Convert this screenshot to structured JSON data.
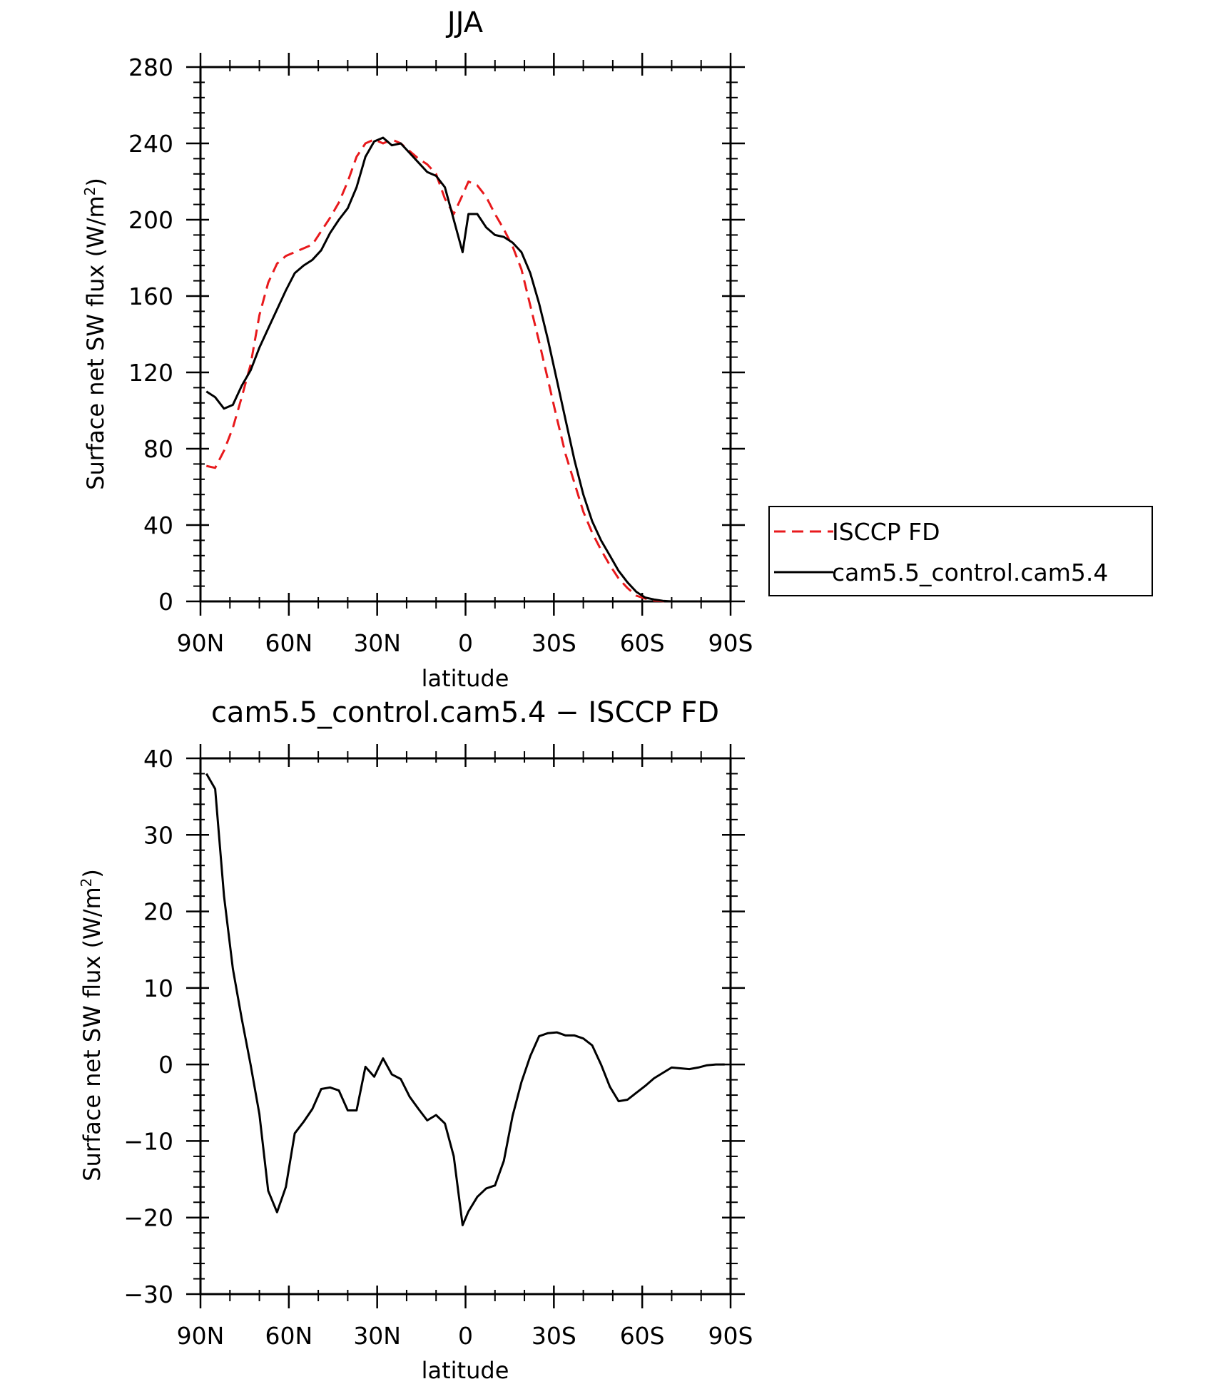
{
  "colors": {
    "model": "#000000",
    "obs": "#e8191c",
    "frame": "#000000",
    "background": "#ffffff"
  },
  "chart_data": [
    {
      "type": "line",
      "title": "JJA",
      "xlabel": "latitude",
      "ylabel": "Surface net SW flux (W/m",
      "ylabel_superscript": "2",
      "ylabel_close": ")",
      "xlim": [
        90,
        -90
      ],
      "ylim": [
        0,
        280
      ],
      "xticks": [
        90,
        60,
        30,
        0,
        -30,
        -60,
        -90
      ],
      "xtick_labels": [
        "90N",
        "60N",
        "30N",
        "0",
        "30S",
        "60S",
        "90S"
      ],
      "yticks": [
        0,
        40,
        80,
        120,
        160,
        200,
        240,
        280
      ],
      "ytick_labels": [
        "0",
        "40",
        "80",
        "120",
        "160",
        "200",
        "240",
        "280"
      ],
      "legend": {
        "placement": "right",
        "entries": [
          "ISCCP FD",
          "cam5.5_control.cam5.4"
        ]
      },
      "series": [
        {
          "name": "ISCCP FD",
          "style": "dashed",
          "color": "#e8191c",
          "x": [
            88,
            85,
            82,
            79,
            76,
            73,
            70,
            67,
            64,
            61,
            58,
            55,
            52,
            49,
            46,
            43,
            40,
            37,
            34,
            31,
            28,
            25,
            22,
            19,
            16,
            13,
            10,
            7,
            4,
            1,
            -1,
            -4,
            -7,
            -10,
            -13,
            -16,
            -19,
            -22,
            -25,
            -28,
            -31,
            -34,
            -37,
            -40,
            -43,
            -46,
            -49,
            -52,
            -55,
            -58,
            -61,
            -64,
            -67,
            -70,
            -73,
            -76,
            -79
          ],
          "y": [
            71,
            70,
            79,
            91,
            107,
            124,
            150,
            167,
            177,
            181,
            183,
            185,
            187,
            194,
            201,
            209,
            220,
            233,
            240,
            242,
            240,
            242,
            240,
            236,
            232,
            229,
            224,
            211,
            203,
            213,
            220,
            218,
            212,
            203,
            195,
            186,
            174,
            155,
            136,
            116,
            96,
            77,
            62,
            47,
            36,
            27,
            19,
            12,
            7,
            3,
            1.5,
            0.5,
            0.1,
            0,
            0,
            0,
            0
          ]
        },
        {
          "name": "cam5.5_control.cam5.4",
          "style": "solid",
          "color": "#000000",
          "x": [
            88,
            85,
            82,
            79,
            76,
            73,
            70,
            67,
            64,
            61,
            58,
            55,
            52,
            49,
            46,
            43,
            40,
            37,
            34,
            31,
            28,
            25,
            22,
            19,
            16,
            13,
            10,
            7,
            4,
            1,
            -1,
            -4,
            -7,
            -10,
            -13,
            -16,
            -19,
            -22,
            -25,
            -28,
            -31,
            -34,
            -37,
            -40,
            -43,
            -46,
            -49,
            -52,
            -55,
            -58,
            -61,
            -64,
            -67,
            -70,
            -73,
            -76,
            -79
          ],
          "y": [
            110,
            107,
            101,
            103,
            113,
            121,
            133,
            143,
            153,
            163,
            172,
            176,
            179,
            184,
            193,
            200,
            206,
            217,
            233,
            241,
            243,
            239,
            240,
            235,
            230,
            225,
            223,
            217,
            200,
            183,
            203,
            203,
            196,
            192,
            191,
            188,
            183,
            172,
            156,
            137,
            116,
            95,
            74,
            56,
            42,
            32,
            24,
            16,
            10,
            5,
            2,
            1,
            0.3,
            0,
            0,
            0,
            0
          ]
        }
      ]
    },
    {
      "type": "line",
      "title": "cam5.5_control.cam5.4 − ISCCP FD",
      "xlabel": "latitude",
      "ylabel": "Surface net SW flux (W/m",
      "ylabel_superscript": "2",
      "ylabel_close": ")",
      "xlim": [
        90,
        -90
      ],
      "ylim": [
        -30,
        40
      ],
      "xticks": [
        90,
        60,
        30,
        0,
        -30,
        -60,
        -90
      ],
      "xtick_labels": [
        "90N",
        "60N",
        "30N",
        "0",
        "30S",
        "60S",
        "90S"
      ],
      "yticks": [
        -30,
        -20,
        -10,
        0,
        10,
        20,
        30,
        40
      ],
      "ytick_labels": [
        "−30",
        "−20",
        "−10",
        "0",
        "10",
        "20",
        "30",
        "40"
      ],
      "series": [
        {
          "style": "solid",
          "color": "#000000",
          "x": [
            88,
            85,
            82,
            79,
            76,
            73,
            70,
            67,
            64,
            61,
            58,
            55,
            52,
            49,
            46,
            43,
            40,
            37,
            34,
            31,
            28,
            25,
            22,
            19,
            16,
            13,
            10,
            7,
            4,
            1,
            -1,
            -4,
            -7,
            -10,
            -13,
            -16,
            -19,
            -22,
            -25,
            -28,
            -31,
            -34,
            -37,
            -40,
            -43,
            -46,
            -49,
            -52,
            -55,
            -58,
            -61,
            -64,
            -67,
            -70,
            -73,
            -76,
            -79,
            -82,
            -85,
            -88
          ],
          "y": [
            38,
            36,
            22,
            12.5,
            6,
            0,
            -6.5,
            -16.5,
            -19.3,
            -16,
            -9,
            -7.5,
            -5.8,
            -3.2,
            -3,
            -3.4,
            -6,
            -6,
            -0.3,
            -1.6,
            0.8,
            -1.3,
            -1.9,
            -4.2,
            -5.8,
            -7.3,
            -6.6,
            -7.7,
            -12,
            -21,
            -19.2,
            -17.3,
            -16.2,
            -15.8,
            -12.6,
            -6.7,
            -2.3,
            1.1,
            3.7,
            4.1,
            4.2,
            3.8,
            3.8,
            3.4,
            2.5,
            0,
            -2.9,
            -4.8,
            -4.6,
            -3.7,
            -2.8,
            -1.8,
            -1.1,
            -0.4,
            -0.5,
            -0.6,
            -0.4,
            -0.1,
            0,
            0
          ]
        }
      ]
    }
  ]
}
